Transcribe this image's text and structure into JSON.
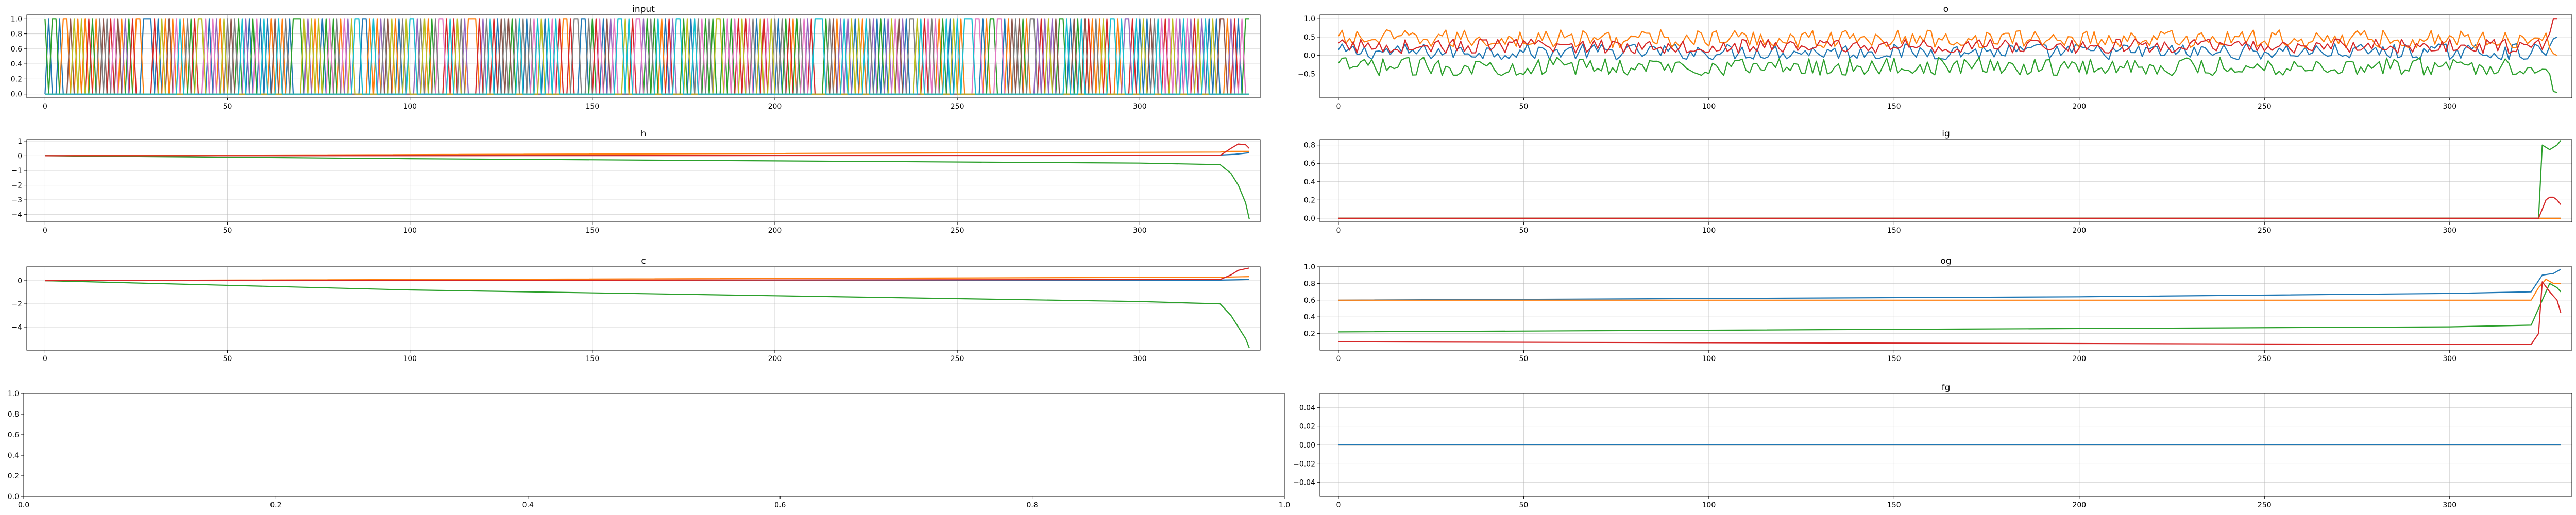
{
  "colors": [
    "#1f77b4",
    "#ff7f0e",
    "#2ca02c",
    "#d62728",
    "#9467bd",
    "#8c564b",
    "#e377c2",
    "#7f7f7f",
    "#bcbd22",
    "#17becf"
  ],
  "chart_data": [
    {
      "id": "input",
      "type": "line",
      "title": "input",
      "xlim": [
        -5,
        333
      ],
      "ylim": [
        -0.05,
        1.05
      ],
      "xticks": [
        0,
        50,
        100,
        150,
        200,
        250,
        300
      ],
      "yticks": [
        0.0,
        0.2,
        0.4,
        0.6,
        0.8,
        1.0
      ],
      "yticklabels": [
        "0.0",
        "0.2",
        "0.4",
        "0.6",
        "0.8",
        "1.0"
      ],
      "grid": true,
      "length": 330,
      "series": [
        {
          "kind": "onehot",
          "levels": 10,
          "description_values": [
            0,
            1
          ]
        }
      ]
    },
    {
      "id": "o",
      "type": "line",
      "title": "o",
      "xlim": [
        -5,
        333
      ],
      "ylim": [
        -1.15,
        1.1
      ],
      "xticks": [
        0,
        50,
        100,
        150,
        200,
        250,
        300
      ],
      "yticks": [
        -0.5,
        0.0,
        0.5,
        1.0
      ],
      "yticklabels": [
        "−0.5",
        "0.0",
        "0.5",
        "1.0"
      ],
      "grid": true,
      "length": 330,
      "series": [
        {
          "color": "#1f77b4",
          "mean": 0.1,
          "noise": 0.22,
          "end_values": [
            0.25,
            0.45,
            0.5
          ]
        },
        {
          "color": "#ff7f0e",
          "mean": 0.45,
          "noise": 0.25,
          "end_values": [
            0.2,
            0.05,
            0.0
          ]
        },
        {
          "color": "#2ca02c",
          "mean": -0.3,
          "noise": 0.25,
          "end_values": [
            -0.5,
            -0.98,
            -1.0
          ]
        },
        {
          "color": "#d62728",
          "mean": 0.25,
          "noise": 0.2,
          "end_values": [
            0.6,
            1.0,
            1.0
          ]
        }
      ]
    },
    {
      "id": "h",
      "type": "line",
      "title": "h",
      "xlim": [
        -5,
        333
      ],
      "ylim": [
        -4.5,
        1.1
      ],
      "xticks": [
        0,
        50,
        100,
        150,
        200,
        250,
        300
      ],
      "yticks": [
        -4,
        -3,
        -2,
        -1,
        0,
        1
      ],
      "yticklabels": [
        "−4",
        "−3",
        "−2",
        "−1",
        "0",
        "1"
      ],
      "grid": true,
      "length": 330,
      "series": [
        {
          "color": "#1f77b4",
          "points": [
            [
              0,
              0.0
            ],
            [
              322,
              0.05
            ],
            [
              326,
              0.1
            ],
            [
              330,
              0.2
            ]
          ]
        },
        {
          "color": "#ff7f0e",
          "points": [
            [
              0,
              0.0
            ],
            [
              322,
              0.25
            ],
            [
              325,
              0.3
            ],
            [
              330,
              0.3
            ]
          ]
        },
        {
          "color": "#2ca02c",
          "points": [
            [
              0,
              0.0
            ],
            [
              100,
              -0.2
            ],
            [
              200,
              -0.35
            ],
            [
              300,
              -0.5
            ],
            [
              322,
              -0.6
            ],
            [
              325,
              -1.2
            ],
            [
              327,
              -2.0
            ],
            [
              329,
              -3.2
            ],
            [
              330,
              -4.3
            ]
          ]
        },
        {
          "color": "#d62728",
          "points": [
            [
              0,
              0.0
            ],
            [
              322,
              0.02
            ],
            [
              325,
              0.5
            ],
            [
              327,
              0.8
            ],
            [
              329,
              0.75
            ],
            [
              330,
              0.5
            ]
          ]
        }
      ]
    },
    {
      "id": "ig",
      "type": "line",
      "title": "ig",
      "xlim": [
        -5,
        333
      ],
      "ylim": [
        -0.04,
        0.86
      ],
      "xticks": [
        0,
        50,
        100,
        150,
        200,
        250,
        300
      ],
      "yticks": [
        0.0,
        0.2,
        0.4,
        0.6,
        0.8
      ],
      "yticklabels": [
        "0.0",
        "0.2",
        "0.4",
        "0.6",
        "0.8"
      ],
      "grid": true,
      "length": 330,
      "series": [
        {
          "color": "#1f77b4",
          "points": [
            [
              0,
              0.0
            ],
            [
              330,
              0.0
            ]
          ]
        },
        {
          "color": "#ff7f0e",
          "points": [
            [
              0,
              0.0
            ],
            [
              330,
              0.0
            ]
          ]
        },
        {
          "color": "#2ca02c",
          "points": [
            [
              0,
              0.0
            ],
            [
              324,
              0.0
            ],
            [
              325,
              0.8
            ],
            [
              327,
              0.75
            ],
            [
              329,
              0.8
            ],
            [
              330,
              0.85
            ]
          ]
        },
        {
          "color": "#d62728",
          "points": [
            [
              0,
              0.0
            ],
            [
              324,
              0.0
            ],
            [
              325,
              0.1
            ],
            [
              326,
              0.2
            ],
            [
              327,
              0.23
            ],
            [
              328,
              0.23
            ],
            [
              329,
              0.2
            ],
            [
              330,
              0.15
            ]
          ]
        }
      ]
    },
    {
      "id": "c",
      "type": "line",
      "title": "c",
      "xlim": [
        -5,
        333
      ],
      "ylim": [
        -6.0,
        1.2
      ],
      "xticks": [
        0,
        50,
        100,
        150,
        200,
        250,
        300
      ],
      "yticks": [
        -4,
        -2,
        0
      ],
      "yticklabels": [
        "−4",
        "−2",
        "0"
      ],
      "grid": true,
      "length": 330,
      "series": [
        {
          "color": "#1f77b4",
          "points": [
            [
              0,
              0.0
            ],
            [
              322,
              0.05
            ],
            [
              330,
              0.1
            ]
          ]
        },
        {
          "color": "#ff7f0e",
          "points": [
            [
              0,
              0.0
            ],
            [
              322,
              0.3
            ],
            [
              330,
              0.35
            ]
          ]
        },
        {
          "color": "#2ca02c",
          "points": [
            [
              0,
              0.0
            ],
            [
              100,
              -0.8
            ],
            [
              200,
              -1.3
            ],
            [
              300,
              -1.8
            ],
            [
              322,
              -2.0
            ],
            [
              325,
              -3.0
            ],
            [
              327,
              -4.0
            ],
            [
              329,
              -5.0
            ],
            [
              330,
              -5.8
            ]
          ]
        },
        {
          "color": "#d62728",
          "points": [
            [
              0,
              0.0
            ],
            [
              322,
              0.1
            ],
            [
              325,
              0.5
            ],
            [
              327,
              0.9
            ],
            [
              330,
              1.1
            ]
          ]
        }
      ]
    },
    {
      "id": "og",
      "type": "line",
      "title": "og",
      "xlim": [
        -5,
        333
      ],
      "ylim": [
        0.0,
        1.0
      ],
      "xticks": [
        0,
        50,
        100,
        150,
        200,
        250,
        300
      ],
      "yticks": [
        0.2,
        0.4,
        0.6,
        0.8,
        1.0
      ],
      "yticklabels": [
        "0.2",
        "0.4",
        "0.6",
        "0.8",
        "1.0"
      ],
      "grid": true,
      "length": 330,
      "series": [
        {
          "color": "#1f77b4",
          "points": [
            [
              0,
              0.6
            ],
            [
              100,
              0.62
            ],
            [
              200,
              0.64
            ],
            [
              300,
              0.68
            ],
            [
              322,
              0.7
            ],
            [
              325,
              0.9
            ],
            [
              328,
              0.92
            ],
            [
              330,
              0.97
            ]
          ]
        },
        {
          "color": "#ff7f0e",
          "points": [
            [
              0,
              0.6
            ],
            [
              322,
              0.6
            ],
            [
              324,
              0.75
            ],
            [
              326,
              0.85
            ],
            [
              328,
              0.8
            ],
            [
              330,
              0.8
            ]
          ]
        },
        {
          "color": "#2ca02c",
          "points": [
            [
              0,
              0.22
            ],
            [
              100,
              0.24
            ],
            [
              200,
              0.26
            ],
            [
              300,
              0.28
            ],
            [
              322,
              0.3
            ],
            [
              325,
              0.6
            ],
            [
              327,
              0.8
            ],
            [
              329,
              0.75
            ],
            [
              330,
              0.7
            ]
          ]
        },
        {
          "color": "#d62728",
          "points": [
            [
              0,
              0.1
            ],
            [
              100,
              0.09
            ],
            [
              200,
              0.08
            ],
            [
              300,
              0.07
            ],
            [
              322,
              0.07
            ],
            [
              324,
              0.2
            ],
            [
              325,
              0.82
            ],
            [
              327,
              0.7
            ],
            [
              329,
              0.6
            ],
            [
              330,
              0.45
            ]
          ]
        }
      ]
    },
    {
      "id": "empty",
      "type": "line",
      "title": "",
      "xlim": [
        0,
        1
      ],
      "ylim": [
        0,
        1
      ],
      "xticks": [
        0.0,
        0.2,
        0.4,
        0.6,
        0.8,
        1.0
      ],
      "xticklabels": [
        "0.0",
        "0.2",
        "0.4",
        "0.6",
        "0.8",
        "1.0"
      ],
      "yticks": [
        0.0,
        0.2,
        0.4,
        0.6,
        0.8,
        1.0
      ],
      "yticklabels": [
        "0.0",
        "0.2",
        "0.4",
        "0.6",
        "0.8",
        "1.0"
      ],
      "grid": false,
      "series": []
    },
    {
      "id": "fg",
      "type": "line",
      "title": "fg",
      "xlim": [
        -5,
        333
      ],
      "ylim": [
        -0.055,
        0.055
      ],
      "xticks": [
        0,
        50,
        100,
        150,
        200,
        250,
        300
      ],
      "yticks": [
        -0.04,
        -0.02,
        0.0,
        0.02,
        0.04
      ],
      "yticklabels": [
        "−0.04",
        "−0.02",
        "0.00",
        "0.02",
        "0.04"
      ],
      "grid": true,
      "length": 330,
      "series": [
        {
          "color": "#ff7f0e",
          "points": [
            [
              0,
              0.0
            ],
            [
              330,
              0.0
            ]
          ]
        },
        {
          "color": "#1f77b4",
          "points": [
            [
              0,
              0.0
            ],
            [
              330,
              0.0
            ]
          ]
        }
      ]
    }
  ]
}
